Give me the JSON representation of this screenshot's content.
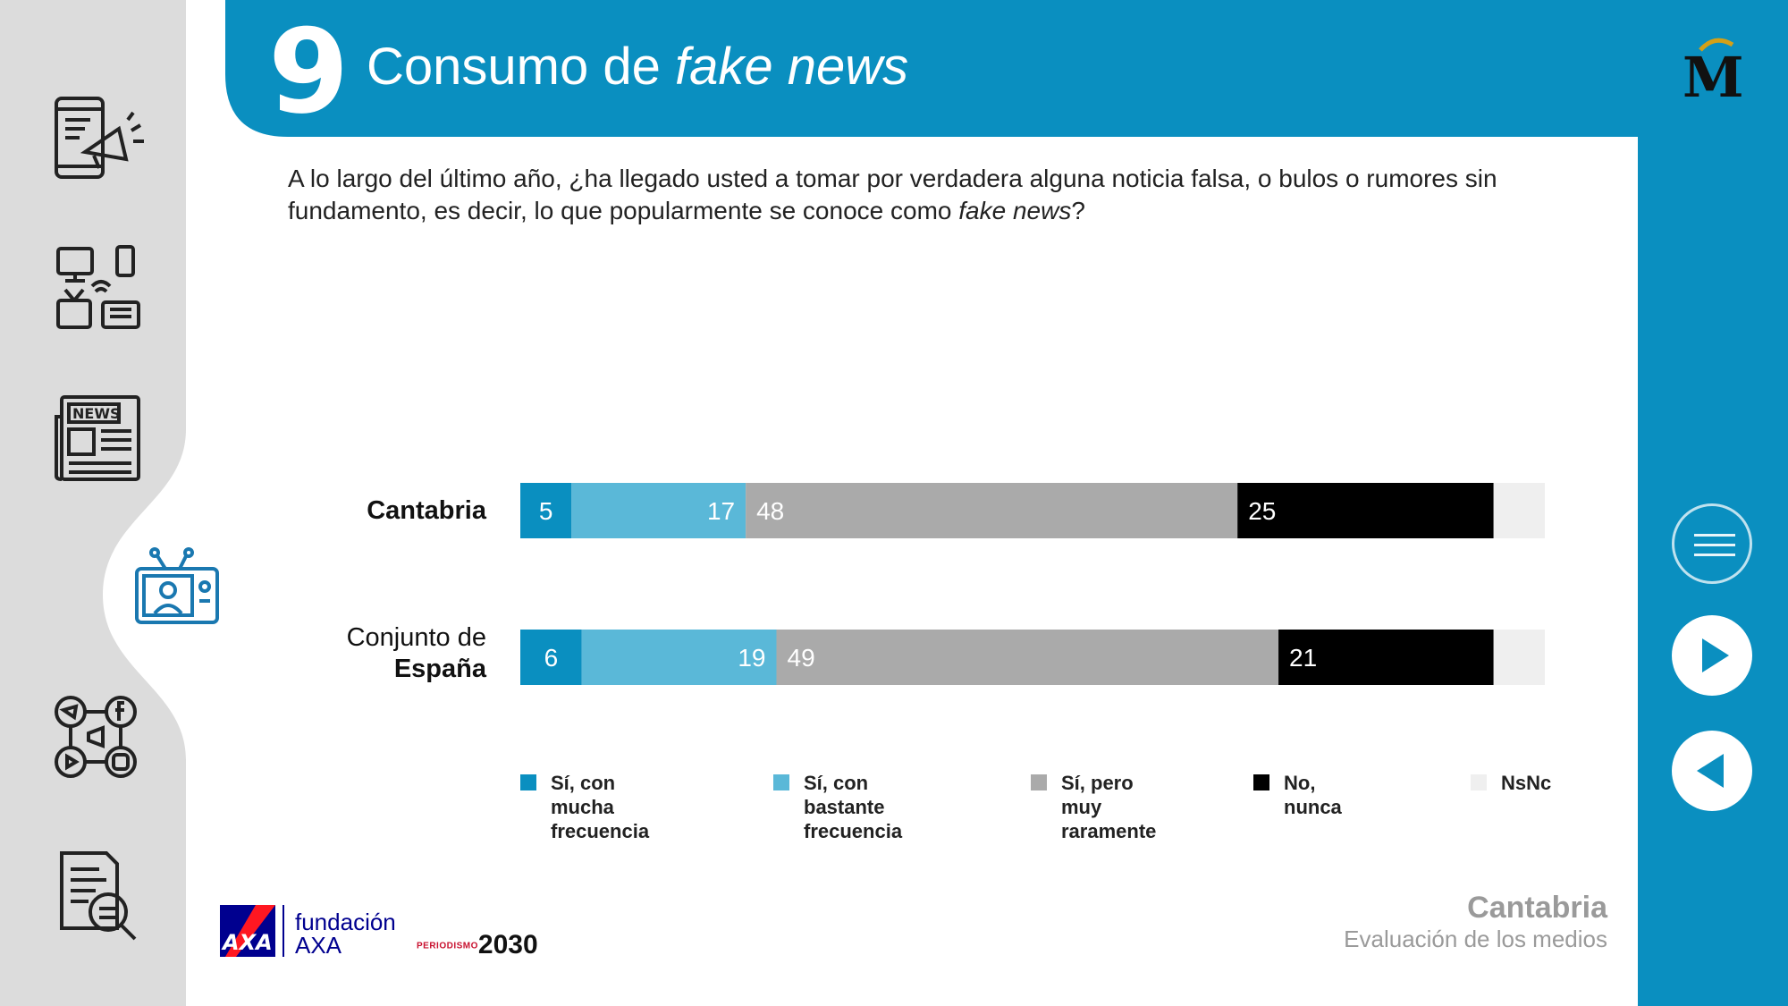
{
  "header": {
    "slide_number": "9",
    "title_plain": "Consumo de ",
    "title_italic": "fake news"
  },
  "question": {
    "text_before": "A lo largo del último año, ¿ha llegado usted a tomar por verdadera alguna noticia falsa, o bulos o rumores sin fundamento, es decir, lo que popularmente se conoce como ",
    "text_italic": "fake news",
    "text_after": "?"
  },
  "sidebar": {
    "items": [
      {
        "icon": "phone-megaphone-icon"
      },
      {
        "icon": "media-devices-icon"
      },
      {
        "icon": "newspaper-icon",
        "label": "NEWS"
      },
      {
        "icon": "tv-presenter-icon",
        "active": true
      },
      {
        "icon": "social-media-icon"
      },
      {
        "icon": "document-search-icon"
      }
    ]
  },
  "colors": {
    "brand_blue": "#0a8fc0",
    "series": [
      "#0a8fc0",
      "#5ab8d8",
      "#aaaaaa",
      "#000000",
      "#efefef"
    ]
  },
  "chart_data": {
    "type": "bar",
    "orientation": "horizontal",
    "stacked": true,
    "categories": [
      {
        "plain": "",
        "bold": "Cantabria"
      },
      {
        "plain": "Conjunto de ",
        "bold": "España"
      }
    ],
    "series": [
      {
        "name": "Sí, con mucha frecuencia",
        "values": [
          5,
          6
        ],
        "label_align": "center"
      },
      {
        "name": "Sí, con bastante frecuencia",
        "values": [
          17,
          19
        ],
        "label_align": "end"
      },
      {
        "name": "Sí, pero muy raramente",
        "values": [
          48,
          49
        ],
        "label_align": "start"
      },
      {
        "name": "No, nunca",
        "values": [
          25,
          21
        ],
        "label_align": "start"
      },
      {
        "name": "NsNc",
        "values": [
          5,
          5
        ],
        "label_align": "none"
      }
    ],
    "xlim": [
      0,
      100
    ],
    "grid": false,
    "legend_position": "bottom"
  },
  "legend": [
    {
      "line1": "Sí, con mucha",
      "line2": "frecuencia"
    },
    {
      "line1": "Sí, con bastante",
      "line2": "frecuencia"
    },
    {
      "line1": "Sí, pero muy",
      "line2": "raramente"
    },
    {
      "line1": "No, nunca",
      "line2": ""
    },
    {
      "line1": "NsNc",
      "line2": ""
    }
  ],
  "footer": {
    "region": "Cantabria",
    "subtitle": "Evaluación de los medios",
    "partner_name_line1": "fundación",
    "partner_name_line2": "AXA",
    "axa_logo_text": "AXA",
    "periodismo_small": "PERIODISMO",
    "periodismo_big": "2030"
  },
  "brand_logo": {
    "letter": "M"
  }
}
